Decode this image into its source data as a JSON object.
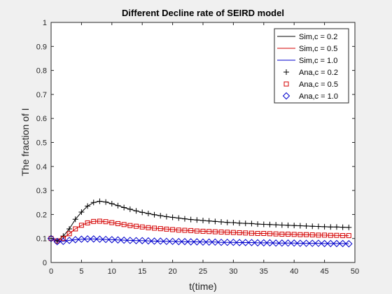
{
  "chart_data": {
    "type": "line",
    "title": "Different Decline rate of SEIRD model",
    "xlabel": "t(time)",
    "ylabel": "The fraction of I",
    "xlim": [
      0,
      50
    ],
    "ylim": [
      0,
      1
    ],
    "xticks": [
      0,
      5,
      10,
      15,
      20,
      25,
      30,
      35,
      40,
      45,
      50
    ],
    "yticks": [
      0,
      0.1,
      0.2,
      0.3,
      0.4,
      0.5,
      0.6,
      0.7,
      0.8,
      0.9,
      1
    ],
    "xtick_labels": [
      "0",
      "5",
      "10",
      "15",
      "20",
      "25",
      "30",
      "35",
      "40",
      "45",
      "50"
    ],
    "ytick_labels": [
      "0",
      "0.1",
      "0.2",
      "0.3",
      "0.4",
      "0.5",
      "0.6",
      "0.7",
      "0.8",
      "0.9",
      "1"
    ],
    "grid": false,
    "legend_position": "top-right",
    "x": [
      0,
      1,
      2,
      3,
      4,
      5,
      6,
      7,
      8,
      9,
      10,
      11,
      12,
      13,
      14,
      15,
      16,
      17,
      18,
      19,
      20,
      21,
      22,
      23,
      24,
      25,
      26,
      27,
      28,
      29,
      30,
      31,
      32,
      33,
      34,
      35,
      36,
      37,
      38,
      39,
      40,
      41,
      42,
      43,
      44,
      45,
      46,
      47,
      48,
      49
    ],
    "series": [
      {
        "name": "Sim,c = 0.2",
        "style": "line",
        "color": "#000000",
        "values": [
          0.1,
          0.09,
          0.11,
          0.14,
          0.18,
          0.21,
          0.235,
          0.25,
          0.255,
          0.252,
          0.245,
          0.237,
          0.229,
          0.222,
          0.215,
          0.209,
          0.204,
          0.199,
          0.195,
          0.191,
          0.188,
          0.185,
          0.182,
          0.179,
          0.177,
          0.175,
          0.173,
          0.171,
          0.169,
          0.167,
          0.166,
          0.164,
          0.163,
          0.162,
          0.16,
          0.159,
          0.158,
          0.157,
          0.156,
          0.155,
          0.154,
          0.153,
          0.152,
          0.151,
          0.15,
          0.149,
          0.148,
          0.148,
          0.147,
          0.146
        ]
      },
      {
        "name": "Sim,c = 0.5",
        "style": "line",
        "color": "#d40000",
        "values": [
          0.1,
          0.09,
          0.1,
          0.12,
          0.14,
          0.155,
          0.165,
          0.171,
          0.172,
          0.17,
          0.166,
          0.162,
          0.158,
          0.154,
          0.151,
          0.148,
          0.145,
          0.143,
          0.141,
          0.139,
          0.137,
          0.135,
          0.134,
          0.133,
          0.131,
          0.13,
          0.129,
          0.128,
          0.127,
          0.126,
          0.125,
          0.124,
          0.123,
          0.122,
          0.121,
          0.121,
          0.12,
          0.119,
          0.118,
          0.118,
          0.117,
          0.116,
          0.116,
          0.115,
          0.114,
          0.114,
          0.113,
          0.113,
          0.112,
          0.112
        ]
      },
      {
        "name": "Sim,c = 1.0",
        "style": "line",
        "color": "#0000cc",
        "values": [
          0.1,
          0.087,
          0.088,
          0.092,
          0.095,
          0.097,
          0.098,
          0.098,
          0.097,
          0.096,
          0.095,
          0.094,
          0.093,
          0.092,
          0.091,
          0.091,
          0.09,
          0.089,
          0.089,
          0.088,
          0.088,
          0.087,
          0.087,
          0.086,
          0.086,
          0.085,
          0.085,
          0.085,
          0.084,
          0.084,
          0.084,
          0.083,
          0.083,
          0.083,
          0.082,
          0.082,
          0.082,
          0.081,
          0.081,
          0.081,
          0.081,
          0.08,
          0.08,
          0.08,
          0.08,
          0.079,
          0.079,
          0.079,
          0.079,
          0.078
        ]
      },
      {
        "name": "Ana,c = 0.2",
        "style": "marker",
        "marker": "plus",
        "color": "#000000",
        "values": [
          0.1,
          0.09,
          0.11,
          0.14,
          0.18,
          0.21,
          0.235,
          0.25,
          0.255,
          0.252,
          0.245,
          0.237,
          0.229,
          0.222,
          0.215,
          0.209,
          0.204,
          0.199,
          0.195,
          0.191,
          0.188,
          0.185,
          0.182,
          0.179,
          0.177,
          0.175,
          0.173,
          0.171,
          0.169,
          0.167,
          0.166,
          0.164,
          0.163,
          0.162,
          0.16,
          0.159,
          0.158,
          0.157,
          0.156,
          0.155,
          0.154,
          0.153,
          0.152,
          0.151,
          0.15,
          0.149,
          0.148,
          0.148,
          0.147,
          0.146
        ]
      },
      {
        "name": "Ana,c = 0.5",
        "style": "marker",
        "marker": "square",
        "color": "#d40000",
        "values": [
          0.1,
          0.09,
          0.1,
          0.12,
          0.14,
          0.155,
          0.165,
          0.171,
          0.172,
          0.17,
          0.166,
          0.162,
          0.158,
          0.154,
          0.151,
          0.148,
          0.145,
          0.143,
          0.141,
          0.139,
          0.137,
          0.135,
          0.134,
          0.133,
          0.131,
          0.13,
          0.129,
          0.128,
          0.127,
          0.126,
          0.125,
          0.124,
          0.123,
          0.122,
          0.121,
          0.121,
          0.12,
          0.119,
          0.118,
          0.118,
          0.117,
          0.116,
          0.116,
          0.115,
          0.114,
          0.114,
          0.113,
          0.113,
          0.112,
          0.112
        ]
      },
      {
        "name": "Ana,c = 1.0",
        "style": "marker",
        "marker": "diamond",
        "color": "#0000cc",
        "values": [
          0.1,
          0.087,
          0.088,
          0.092,
          0.095,
          0.097,
          0.098,
          0.098,
          0.097,
          0.096,
          0.095,
          0.094,
          0.093,
          0.092,
          0.091,
          0.091,
          0.09,
          0.089,
          0.089,
          0.088,
          0.088,
          0.087,
          0.087,
          0.086,
          0.086,
          0.085,
          0.085,
          0.085,
          0.084,
          0.084,
          0.084,
          0.083,
          0.083,
          0.083,
          0.082,
          0.082,
          0.082,
          0.081,
          0.081,
          0.081,
          0.081,
          0.08,
          0.08,
          0.08,
          0.08,
          0.079,
          0.079,
          0.079,
          0.079,
          0.078
        ]
      }
    ]
  }
}
